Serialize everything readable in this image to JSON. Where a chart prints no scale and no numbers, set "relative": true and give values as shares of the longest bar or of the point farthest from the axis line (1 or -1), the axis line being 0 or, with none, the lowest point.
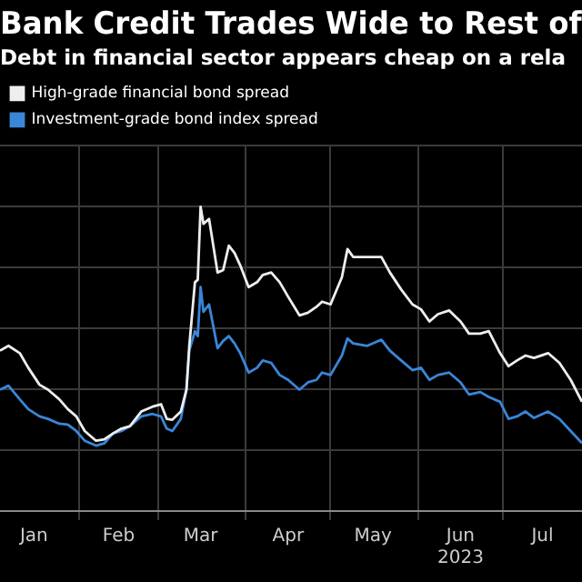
{
  "chart_data": {
    "type": "line",
    "title": "Bank Credit Trades Wide to Rest of",
    "subtitle": "Debt in financial sector appears cheap on a rela",
    "relative": true,
    "grid": true,
    "legend": "top left",
    "marker": "none",
    "line_style": "solid",
    "xlim": [
      "2023-01-04",
      "2023-07-29"
    ],
    "xticks": [
      {
        "value": "2023-01-16",
        "label": "Jan"
      },
      {
        "value": "2023-02-01",
        "label": null
      },
      {
        "value": "2023-02-15",
        "label": "Feb"
      },
      {
        "value": "2023-03-01",
        "label": null
      },
      {
        "value": "2023-03-16",
        "label": "Mar"
      },
      {
        "value": "2023-04-01",
        "label": null
      },
      {
        "value": "2023-04-16",
        "label": "Apr"
      },
      {
        "value": "2023-05-01",
        "label": null
      },
      {
        "value": "2023-05-16",
        "label": "May"
      },
      {
        "value": "2023-06-01",
        "label": null
      },
      {
        "value": "2023-06-16",
        "label": "Jun\n2023"
      },
      {
        "value": "2023-07-01",
        "label": null
      },
      {
        "value": "2023-07-15",
        "label": "Jul"
      }
    ],
    "x": [
      "2023-01-04",
      "2023-01-07",
      "2023-01-11",
      "2023-01-14",
      "2023-01-18",
      "2023-01-21",
      "2023-01-25",
      "2023-01-28",
      "2023-01-31",
      "2023-02-03",
      "2023-02-07",
      "2023-02-10",
      "2023-02-13",
      "2023-02-16",
      "2023-02-19",
      "2023-02-23",
      "2023-02-27",
      "2023-03-02",
      "2023-03-04",
      "2023-03-06",
      "2023-03-09",
      "2023-03-11",
      "2023-03-12",
      "2023-03-14",
      "2023-03-15",
      "2023-03-16",
      "2023-03-17",
      "2023-03-19",
      "2023-03-22",
      "2023-03-24",
      "2023-03-26",
      "2023-03-28",
      "2023-03-30",
      "2023-04-02",
      "2023-04-05",
      "2023-04-07",
      "2023-04-10",
      "2023-04-13",
      "2023-04-16",
      "2023-04-20",
      "2023-04-23",
      "2023-04-26",
      "2023-04-28",
      "2023-05-01",
      "2023-05-05",
      "2023-05-07",
      "2023-05-09",
      "2023-05-14",
      "2023-05-19",
      "2023-05-22",
      "2023-05-26",
      "2023-05-30",
      "2023-06-02",
      "2023-06-05",
      "2023-06-08",
      "2023-06-12",
      "2023-06-16",
      "2023-06-19",
      "2023-06-23",
      "2023-06-26",
      "2023-06-30",
      "2023-07-03",
      "2023-07-06",
      "2023-07-09",
      "2023-07-12",
      "2023-07-17",
      "2023-07-21",
      "2023-07-25",
      "2023-07-29"
    ],
    "series": [
      {
        "name": "High-grade financial bond spread",
        "color": "#eeeeee",
        "values": [
          0.527,
          0.543,
          0.519,
          0.471,
          0.415,
          0.399,
          0.367,
          0.335,
          0.311,
          0.263,
          0.231,
          0.236,
          0.255,
          0.271,
          0.279,
          0.327,
          0.343,
          0.351,
          0.303,
          0.3,
          0.327,
          0.399,
          0.543,
          0.752,
          0.76,
          1.0,
          0.944,
          0.96,
          0.784,
          0.792,
          0.872,
          0.848,
          0.808,
          0.736,
          0.752,
          0.776,
          0.784,
          0.752,
          0.704,
          0.643,
          0.652,
          0.671,
          0.688,
          0.679,
          0.768,
          0.861,
          0.835,
          0.835,
          0.835,
          0.784,
          0.728,
          0.679,
          0.663,
          0.623,
          0.647,
          0.659,
          0.623,
          0.583,
          0.583,
          0.591,
          0.519,
          0.476,
          0.495,
          0.511,
          0.503,
          0.519,
          0.487,
          0.431,
          0.359
        ]
      },
      {
        "name": "Investment-grade bond index spread",
        "color": "#3a86d8",
        "values": [
          0.399,
          0.412,
          0.367,
          0.335,
          0.311,
          0.303,
          0.287,
          0.284,
          0.263,
          0.231,
          0.215,
          0.223,
          0.255,
          0.263,
          0.279,
          0.311,
          0.319,
          0.311,
          0.271,
          0.263,
          0.303,
          0.399,
          0.527,
          0.591,
          0.575,
          0.736,
          0.655,
          0.679,
          0.535,
          0.559,
          0.575,
          0.551,
          0.519,
          0.455,
          0.471,
          0.495,
          0.487,
          0.447,
          0.431,
          0.399,
          0.423,
          0.431,
          0.455,
          0.447,
          0.511,
          0.567,
          0.551,
          0.543,
          0.563,
          0.527,
          0.495,
          0.463,
          0.471,
          0.431,
          0.447,
          0.455,
          0.423,
          0.383,
          0.391,
          0.375,
          0.359,
          0.303,
          0.311,
          0.327,
          0.306,
          0.327,
          0.303,
          0.263,
          0.223
        ]
      }
    ]
  }
}
